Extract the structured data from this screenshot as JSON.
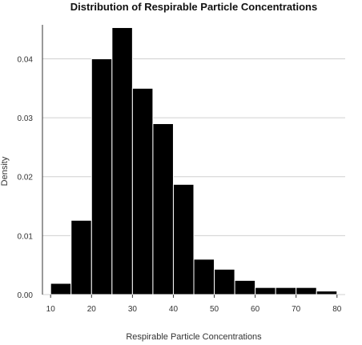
{
  "chart_data": {
    "type": "bar",
    "title": "Distribution of Respirable Particle Concentrations",
    "xlabel": "Respirable Particle Concentrations",
    "ylabel": "Density",
    "xlim": [
      8,
      82
    ],
    "ylim": [
      0,
      0.0455
    ],
    "xticks": [
      10,
      20,
      30,
      40,
      50,
      60,
      70,
      80
    ],
    "yticks": [
      0.0,
      0.01,
      0.02,
      0.03,
      0.04
    ],
    "ytick_labels": [
      "0.00",
      "0.01",
      "0.02",
      "0.03",
      "0.04"
    ],
    "grid": "horizontal",
    "bins": [
      {
        "start": 10,
        "end": 15,
        "density": 0.0019
      },
      {
        "start": 15,
        "end": 20,
        "density": 0.0126
      },
      {
        "start": 20,
        "end": 25,
        "density": 0.04
      },
      {
        "start": 25,
        "end": 30,
        "density": 0.0453
      },
      {
        "start": 30,
        "end": 35,
        "density": 0.035
      },
      {
        "start": 35,
        "end": 40,
        "density": 0.029
      },
      {
        "start": 40,
        "end": 45,
        "density": 0.0187
      },
      {
        "start": 45,
        "end": 50,
        "density": 0.006
      },
      {
        "start": 50,
        "end": 55,
        "density": 0.0043
      },
      {
        "start": 55,
        "end": 60,
        "density": 0.0024
      },
      {
        "start": 60,
        "end": 65,
        "density": 0.0012
      },
      {
        "start": 65,
        "end": 70,
        "density": 0.0012
      },
      {
        "start": 70,
        "end": 75,
        "density": 0.0012
      },
      {
        "start": 75,
        "end": 80,
        "density": 0.0006
      }
    ]
  }
}
